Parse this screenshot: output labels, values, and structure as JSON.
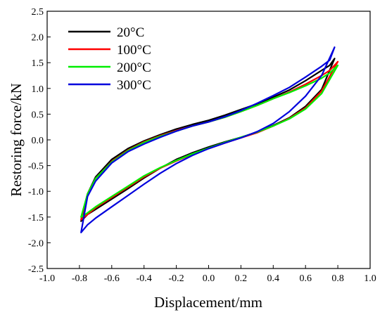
{
  "chart_data": {
    "type": "line",
    "title": "",
    "xlabel": "Displacement/mm",
    "ylabel": "Restoring force/kN",
    "xlim": [
      -1.0,
      1.0
    ],
    "ylim": [
      -2.5,
      2.5
    ],
    "xticks": [
      "-1.0",
      "-0.8",
      "-0.6",
      "-0.4",
      "-0.2",
      "0.0",
      "0.2",
      "0.4",
      "0.6",
      "0.8",
      "1.0"
    ],
    "yticks": [
      "2.5",
      "2.0",
      "1.5",
      "1.0",
      "0.5",
      "0.0",
      "-0.5",
      "-1.0",
      "-1.5",
      "-2.0",
      "-2.5"
    ],
    "grid": false,
    "legend_position": "top-left",
    "series": [
      {
        "name": "20°C",
        "color": "#000000",
        "x": [
          -0.79,
          -0.75,
          -0.7,
          -0.6,
          -0.5,
          -0.4,
          -0.3,
          -0.2,
          -0.1,
          0.0,
          0.1,
          0.2,
          0.3,
          0.4,
          0.5,
          0.6,
          0.7,
          0.78,
          0.78,
          0.75,
          0.7,
          0.6,
          0.5,
          0.4,
          0.3,
          0.2,
          0.1,
          0.0,
          -0.1,
          -0.2,
          -0.3,
          -0.4,
          -0.5,
          -0.6,
          -0.7,
          -0.75,
          -0.79
        ],
        "y": [
          -1.58,
          -1.45,
          -1.35,
          -1.15,
          -0.95,
          -0.74,
          -0.55,
          -0.38,
          -0.25,
          -0.14,
          -0.04,
          0.05,
          0.15,
          0.28,
          0.43,
          0.65,
          0.98,
          1.58,
          1.58,
          1.45,
          1.35,
          1.15,
          0.97,
          0.83,
          0.7,
          0.59,
          0.48,
          0.38,
          0.3,
          0.21,
          0.1,
          -0.02,
          -0.17,
          -0.38,
          -0.72,
          -1.05,
          -1.58
        ]
      },
      {
        "name": "100°C",
        "color": "#ff0000",
        "x": [
          -0.79,
          -0.75,
          -0.7,
          -0.6,
          -0.5,
          -0.4,
          -0.3,
          -0.2,
          -0.1,
          0.0,
          0.1,
          0.2,
          0.3,
          0.4,
          0.5,
          0.6,
          0.7,
          0.8,
          0.8,
          0.75,
          0.7,
          0.6,
          0.5,
          0.4,
          0.3,
          0.2,
          0.1,
          0.0,
          -0.1,
          -0.2,
          -0.3,
          -0.4,
          -0.5,
          -0.6,
          -0.7,
          -0.75,
          -0.79
        ],
        "y": [
          -1.55,
          -1.45,
          -1.32,
          -1.12,
          -0.92,
          -0.72,
          -0.55,
          -0.41,
          -0.28,
          -0.17,
          -0.06,
          0.04,
          0.14,
          0.27,
          0.42,
          0.62,
          0.95,
          1.52,
          1.52,
          1.35,
          1.25,
          1.08,
          0.93,
          0.8,
          0.67,
          0.55,
          0.44,
          0.35,
          0.27,
          0.18,
          0.08,
          -0.04,
          -0.2,
          -0.42,
          -0.75,
          -1.05,
          -1.55
        ]
      },
      {
        "name": "200°C",
        "color": "#00ee00",
        "x": [
          -0.79,
          -0.75,
          -0.7,
          -0.6,
          -0.5,
          -0.4,
          -0.3,
          -0.2,
          -0.1,
          0.0,
          0.1,
          0.2,
          0.3,
          0.4,
          0.5,
          0.6,
          0.7,
          0.8,
          0.8,
          0.75,
          0.7,
          0.6,
          0.5,
          0.4,
          0.3,
          0.2,
          0.1,
          0.0,
          -0.1,
          -0.2,
          -0.3,
          -0.4,
          -0.5,
          -0.6,
          -0.7,
          -0.75,
          -0.79
        ],
        "y": [
          -1.5,
          -1.42,
          -1.3,
          -1.1,
          -0.9,
          -0.7,
          -0.54,
          -0.4,
          -0.27,
          -0.16,
          -0.05,
          0.05,
          0.15,
          0.27,
          0.41,
          0.6,
          0.9,
          1.45,
          1.45,
          1.3,
          1.2,
          1.05,
          0.92,
          0.8,
          0.67,
          0.55,
          0.44,
          0.35,
          0.27,
          0.17,
          0.07,
          -0.05,
          -0.21,
          -0.43,
          -0.75,
          -1.05,
          -1.5
        ]
      },
      {
        "name": "300°C",
        "color": "#0000dd",
        "x": [
          -0.79,
          -0.75,
          -0.7,
          -0.6,
          -0.5,
          -0.4,
          -0.3,
          -0.2,
          -0.1,
          0.0,
          0.1,
          0.2,
          0.3,
          0.4,
          0.5,
          0.6,
          0.7,
          0.78,
          0.78,
          0.75,
          0.7,
          0.6,
          0.5,
          0.4,
          0.3,
          0.2,
          0.1,
          0.0,
          -0.1,
          -0.2,
          -0.3,
          -0.4,
          -0.5,
          -0.6,
          -0.7,
          -0.75,
          -0.79
        ],
        "y": [
          -1.8,
          -1.65,
          -1.52,
          -1.3,
          -1.08,
          -0.86,
          -0.65,
          -0.46,
          -0.3,
          -0.17,
          -0.06,
          0.04,
          0.16,
          0.32,
          0.55,
          0.85,
          1.25,
          1.8,
          1.8,
          1.55,
          1.43,
          1.22,
          1.02,
          0.86,
          0.71,
          0.57,
          0.45,
          0.35,
          0.27,
          0.17,
          0.05,
          -0.08,
          -0.23,
          -0.45,
          -0.8,
          -1.1,
          -1.8
        ]
      }
    ]
  }
}
